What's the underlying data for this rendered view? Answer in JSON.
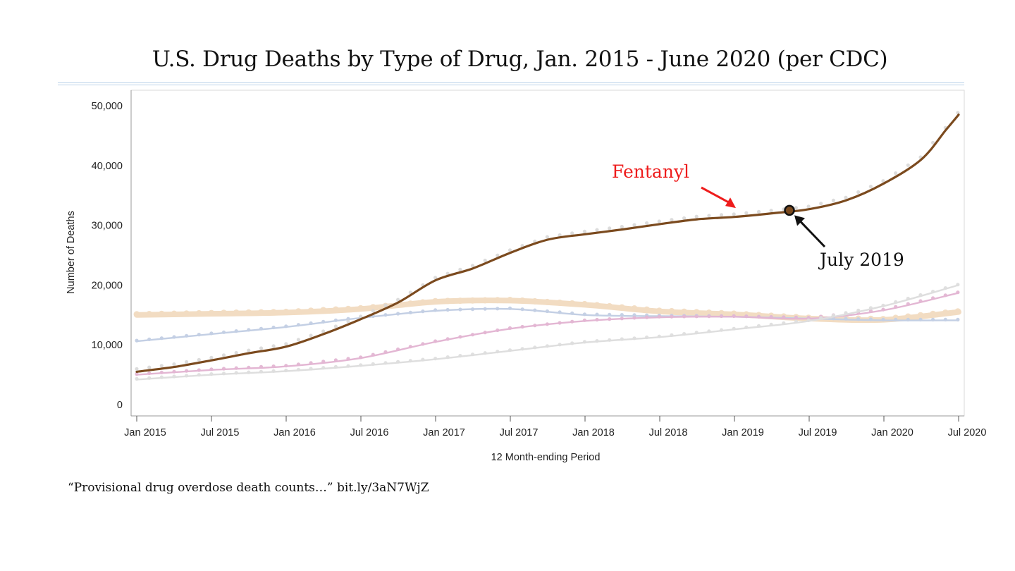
{
  "slide": {
    "title": "U.S. Drug Deaths by Type of Drug, Jan. 2015 - June 2020 (per CDC)",
    "source": "“Provisional drug overdose death counts…” bit.ly/3aN7WjZ"
  },
  "chart_data": {
    "type": "line",
    "title": "",
    "xlabel": "12 Month-ending Period",
    "ylabel": "Number of Deaths",
    "ylim": [
      0,
      50000
    ],
    "xlim": [
      "2015-01",
      "2020-07"
    ],
    "yticks": [
      {
        "value": 0,
        "label": "0"
      },
      {
        "value": 10000,
        "label": "10,000"
      },
      {
        "value": 20000,
        "label": "20,000"
      },
      {
        "value": 30000,
        "label": "30,000"
      },
      {
        "value": 40000,
        "label": "40,000"
      },
      {
        "value": 50000,
        "label": "50,000"
      }
    ],
    "xticks": [
      {
        "month": "2015-01",
        "label": "Jan 2015"
      },
      {
        "month": "2015-07",
        "label": "Jul 2015"
      },
      {
        "month": "2016-01",
        "label": "Jan 2016"
      },
      {
        "month": "2016-07",
        "label": "Jul 2016"
      },
      {
        "month": "2017-01",
        "label": "Jan 2017"
      },
      {
        "month": "2017-07",
        "label": "Jul 2017"
      },
      {
        "month": "2018-01",
        "label": "Jan 2018"
      },
      {
        "month": "2018-07",
        "label": "Jul 2018"
      },
      {
        "month": "2019-01",
        "label": "Jan 2019"
      },
      {
        "month": "2019-07",
        "label": "Jul 2019"
      },
      {
        "month": "2020-01",
        "label": "Jan 2020"
      },
      {
        "month": "2020-07",
        "label": "Jul 2020"
      }
    ],
    "grid": false,
    "series": [
      {
        "color": "#f2dcc2",
        "highlight": false,
        "points": [
          [
            "2015-01",
            15000
          ],
          [
            "2015-07",
            15200
          ],
          [
            "2016-01",
            15400
          ],
          [
            "2016-07",
            16000
          ],
          [
            "2017-01",
            17200
          ],
          [
            "2017-07",
            17400
          ],
          [
            "2018-01",
            16700
          ],
          [
            "2018-07",
            15600
          ],
          [
            "2019-01",
            15100
          ],
          [
            "2019-07",
            14400
          ],
          [
            "2020-01",
            14200
          ],
          [
            "2020-07",
            15500
          ]
        ]
      },
      {
        "color": "#c3cfe4",
        "highlight": false,
        "points": [
          [
            "2015-01",
            10600
          ],
          [
            "2015-07",
            11800
          ],
          [
            "2016-01",
            13000
          ],
          [
            "2016-07",
            14500
          ],
          [
            "2017-01",
            15700
          ],
          [
            "2017-07",
            16000
          ],
          [
            "2018-01",
            15000
          ],
          [
            "2018-07",
            14800
          ],
          [
            "2019-01",
            14700
          ],
          [
            "2019-07",
            14400
          ],
          [
            "2020-01",
            14100
          ],
          [
            "2020-07",
            14100
          ]
        ]
      },
      {
        "color": "#e3b6d3",
        "highlight": false,
        "points": [
          [
            "2015-01",
            5000
          ],
          [
            "2015-07",
            5800
          ],
          [
            "2016-01",
            6400
          ],
          [
            "2016-07",
            7800
          ],
          [
            "2017-01",
            10500
          ],
          [
            "2017-07",
            12700
          ],
          [
            "2018-01",
            14000
          ],
          [
            "2018-07",
            14600
          ],
          [
            "2019-01",
            14700
          ],
          [
            "2019-07",
            14400
          ],
          [
            "2020-01",
            15800
          ],
          [
            "2020-07",
            18700
          ]
        ]
      },
      {
        "color": "#dedede",
        "highlight": false,
        "points": [
          [
            "2015-01",
            4200
          ],
          [
            "2015-07",
            5000
          ],
          [
            "2016-01",
            5600
          ],
          [
            "2016-07",
            6500
          ],
          [
            "2017-01",
            7600
          ],
          [
            "2017-07",
            9000
          ],
          [
            "2018-01",
            10400
          ],
          [
            "2018-07",
            11300
          ],
          [
            "2019-01",
            12600
          ],
          [
            "2019-07",
            14000
          ],
          [
            "2020-01",
            16500
          ],
          [
            "2020-07",
            20000
          ]
        ]
      },
      {
        "name": "Fentanyl",
        "color": "#7b4a1e",
        "highlight": true,
        "points": [
          [
            "2015-01",
            5500
          ],
          [
            "2015-04",
            6300
          ],
          [
            "2015-07",
            7400
          ],
          [
            "2015-10",
            8600
          ],
          [
            "2016-01",
            9700
          ],
          [
            "2016-04",
            11800
          ],
          [
            "2016-07",
            14300
          ],
          [
            "2016-10",
            17100
          ],
          [
            "2017-01",
            20800
          ],
          [
            "2017-04",
            22800
          ],
          [
            "2017-07",
            25400
          ],
          [
            "2017-10",
            27600
          ],
          [
            "2018-01",
            28500
          ],
          [
            "2018-04",
            29300
          ],
          [
            "2018-07",
            30200
          ],
          [
            "2018-10",
            31000
          ],
          [
            "2019-01",
            31400
          ],
          [
            "2019-04",
            32000
          ],
          [
            "2019-07",
            32700
          ],
          [
            "2019-10",
            34200
          ],
          [
            "2020-01",
            37000
          ],
          [
            "2020-04",
            41000
          ],
          [
            "2020-06",
            46000
          ],
          [
            "2020-07",
            48500
          ]
        ]
      }
    ],
    "annotations": [
      {
        "text": "Fentanyl",
        "color": "#ee1c1c",
        "target": [
          "2019-01",
          33000
        ]
      },
      {
        "text": "July 2019",
        "color": "#111111",
        "target": [
          "2019-07",
          32500
        ],
        "marker": true
      }
    ]
  }
}
